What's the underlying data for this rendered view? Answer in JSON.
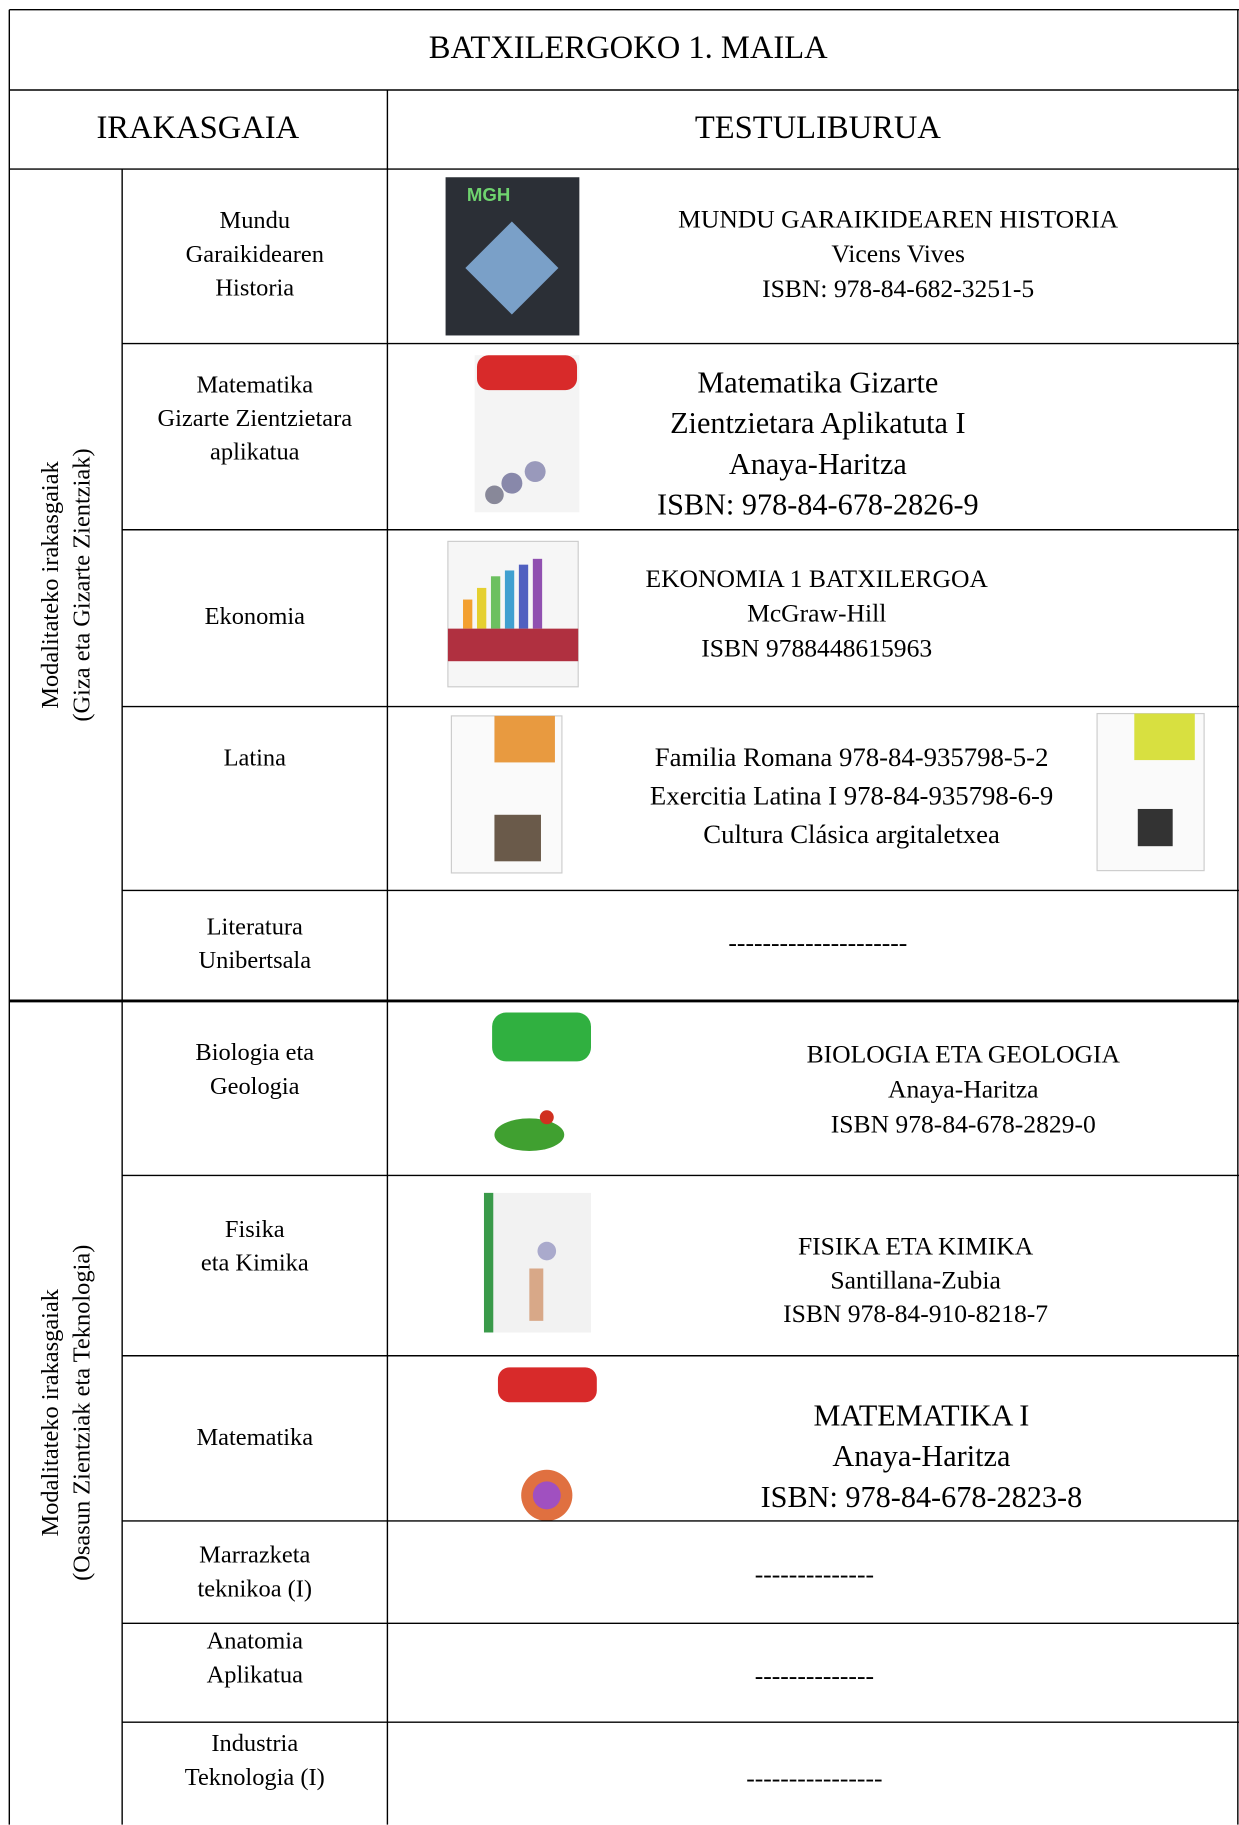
{
  "header": {
    "title": "BATXILERGOKO 1. MAILA"
  },
  "columns": [
    "IRAKASGAIA",
    "TESTULIBURUA"
  ],
  "groups": [
    {
      "label": [
        "Modalitateko irakasgaiak",
        "(Giza eta Gizarte Zientziak)"
      ],
      "rows": [
        {
          "subject": [
            "Mundu",
            "Garaikidearen",
            "Historia"
          ],
          "book": [
            "MUNDU GARAIKIDEAREN HISTORIA",
            "Vicens Vives",
            "ISBN: 978-84-682-3251-5"
          ]
        },
        {
          "subject": [
            "Matematika",
            "Gizarte Zientzietara",
            "aplikatua"
          ],
          "book": [
            "Matematika Gizarte",
            "Zientzietara Aplikatuta I",
            "Anaya-Haritza",
            "ISBN: 978-84-678-2826-9"
          ]
        },
        {
          "subject": [
            "Ekonomia"
          ],
          "book": [
            "EKONOMIA 1 BATXILERGOA",
            "McGraw-Hill",
            "ISBN 9788448615963"
          ]
        },
        {
          "subject": [
            "Latina"
          ],
          "book": [
            "Familia Romana 978-84-935798-5-2",
            "Exercitia Latina I 978-84-935798-6-9",
            "Cultura Clásica argitaletxea"
          ]
        },
        {
          "subject": [
            "Literatura",
            "Unibertsala"
          ],
          "book": [
            "---------------------"
          ]
        }
      ]
    },
    {
      "label": [
        "Modalitateko irakasgaiak",
        "(Osasun Zientziak eta Teknologia)"
      ],
      "rows": [
        {
          "subject": [
            "Biologia eta",
            "Geologia"
          ],
          "book": [
            "BIOLOGIA ETA GEOLOGIA",
            "Anaya-Haritza",
            "ISBN 978-84-678-2829-0"
          ]
        },
        {
          "subject": [
            "Fisika",
            "eta Kimika"
          ],
          "book": [
            "FISIKA ETA KIMIKA",
            "Santillana-Zubia",
            "ISBN 978-84-910-8218-7"
          ]
        },
        {
          "subject": [
            "Matematika"
          ],
          "book": [
            "MATEMATIKA I",
            "Anaya-Haritza",
            "ISBN: 978-84-678-2823-8"
          ]
        },
        {
          "subject": [
            "Marrazketa",
            "teknikoa (I)"
          ],
          "book": [
            "--------------"
          ]
        },
        {
          "subject": [
            "Anatomia",
            "Aplikatua"
          ],
          "book": [
            "--------------"
          ]
        },
        {
          "subject": [
            "Industria",
            "Teknologia (I)"
          ],
          "book": [
            "----------------"
          ]
        }
      ]
    }
  ]
}
